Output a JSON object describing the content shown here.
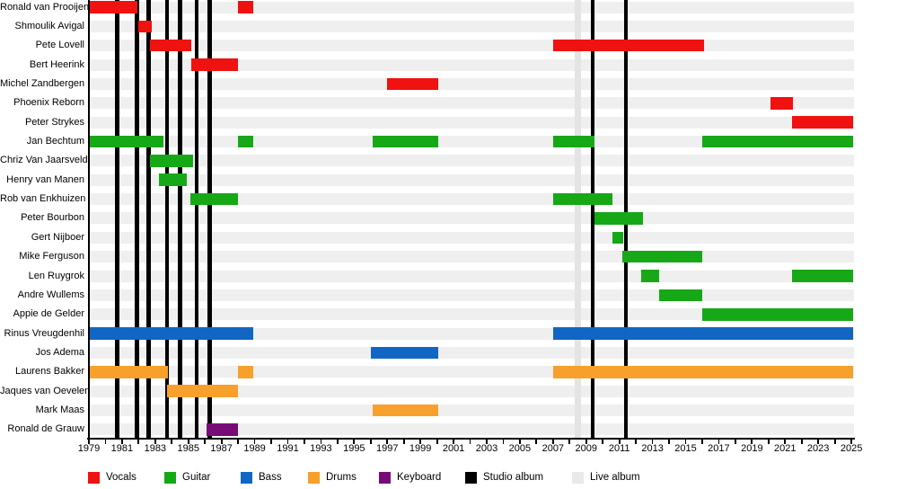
{
  "chart_data": {
    "type": "bar",
    "variant": "band-members-gantt-timeline",
    "title": "",
    "x_axis": {
      "min": 1979,
      "max": 2025.13,
      "tick_step": 1,
      "tick_labels": [
        "1979",
        "1981",
        "1983",
        "1985",
        "1987",
        "1989",
        "1991",
        "1993",
        "1995",
        "1997",
        "1999",
        "2001",
        "2003",
        "2005",
        "2007",
        "2009",
        "2011",
        "2013",
        "2015",
        "2017",
        "2019",
        "2021",
        "2023",
        "2025"
      ],
      "tick_label_years": [
        1979,
        1981,
        1983,
        1985,
        1987,
        1989,
        1991,
        1993,
        1995,
        1997,
        1999,
        2001,
        2003,
        2005,
        2007,
        2009,
        2011,
        2013,
        2015,
        2017,
        2019,
        2021,
        2023,
        2025
      ]
    },
    "rows": [
      {
        "name": "Ronald van Prooijen",
        "role": "Vocals",
        "intervals": [
          [
            1979.0,
            1981.9
          ],
          [
            1988.0,
            1988.9
          ]
        ]
      },
      {
        "name": "Shmoulik Avigal",
        "role": "Vocals",
        "intervals": [
          [
            1982.0,
            1982.8
          ]
        ]
      },
      {
        "name": "Pete Lovell",
        "role": "Vocals",
        "intervals": [
          [
            1982.7,
            1985.2
          ],
          [
            2007.0,
            2016.1
          ]
        ]
      },
      {
        "name": "Bert Heerink",
        "role": "Vocals",
        "intervals": [
          [
            1985.2,
            1988.0
          ]
        ]
      },
      {
        "name": "Michel Zandbergen",
        "role": "Vocals",
        "intervals": [
          [
            1997.0,
            2000.1
          ]
        ]
      },
      {
        "name": "Phoenix Reborn",
        "role": "Vocals",
        "intervals": [
          [
            2020.1,
            2021.5
          ]
        ]
      },
      {
        "name": "Peter Strykes",
        "role": "Vocals",
        "intervals": [
          [
            2021.4,
            2025.13
          ]
        ]
      },
      {
        "name": "Jan Bechtum",
        "role": "Guitar",
        "intervals": [
          [
            1979.0,
            1983.5
          ],
          [
            1988.0,
            1988.9
          ],
          [
            1996.1,
            2000.1
          ],
          [
            2007.0,
            2009.5
          ],
          [
            2016.0,
            2025.13
          ]
        ]
      },
      {
        "name": "Chriz Van Jaarsveld",
        "role": "Guitar",
        "intervals": [
          [
            1982.7,
            1985.3
          ]
        ]
      },
      {
        "name": "Henry van Manen",
        "role": "Guitar",
        "intervals": [
          [
            1983.2,
            1984.9
          ]
        ]
      },
      {
        "name": "Rob van Enkhuizen",
        "role": "Guitar",
        "intervals": [
          [
            1985.1,
            1988.0
          ],
          [
            2007.0,
            2010.6
          ]
        ]
      },
      {
        "name": "Peter Bourbon",
        "role": "Guitar",
        "intervals": [
          [
            2009.5,
            2012.4
          ]
        ]
      },
      {
        "name": "Gert Nijboer",
        "role": "Guitar",
        "intervals": [
          [
            2010.6,
            2011.25
          ]
        ]
      },
      {
        "name": "Mike Ferguson",
        "role": "Guitar",
        "intervals": [
          [
            2011.2,
            2016.0
          ]
        ]
      },
      {
        "name": "Len Ruygrok",
        "role": "Guitar",
        "intervals": [
          [
            2012.3,
            2013.4
          ],
          [
            2021.4,
            2025.13
          ]
        ]
      },
      {
        "name": "Andre Wullems",
        "role": "Guitar",
        "intervals": [
          [
            2013.4,
            2016.0
          ]
        ]
      },
      {
        "name": "Appie de Gelder",
        "role": "Guitar",
        "intervals": [
          [
            2016.0,
            2025.13
          ]
        ]
      },
      {
        "name": "Rinus Vreugdenhil",
        "role": "Bass",
        "intervals": [
          [
            1979.0,
            1988.9
          ],
          [
            2007.0,
            2025.13
          ]
        ]
      },
      {
        "name": "Jos Adema",
        "role": "Bass",
        "intervals": [
          [
            1996.0,
            2000.1
          ]
        ]
      },
      {
        "name": "Laurens Bakker",
        "role": "Drums",
        "intervals": [
          [
            1979.0,
            1983.75
          ],
          [
            1988.0,
            1988.9
          ],
          [
            2007.0,
            2025.13
          ]
        ]
      },
      {
        "name": "Jaques van Oevelen",
        "role": "Drums",
        "intervals": [
          [
            1983.7,
            1988.0
          ]
        ]
      },
      {
        "name": "Mark Maas",
        "role": "Drums",
        "intervals": [
          [
            1996.1,
            2000.1
          ]
        ]
      },
      {
        "name": "Ronald de Grauw",
        "role": "Keyboard",
        "intervals": [
          [
            1986.1,
            1988.0
          ]
        ]
      }
    ],
    "albums": {
      "studio_years": [
        1980.7,
        1981.9,
        1982.6,
        1983.7,
        1984.5,
        1985.5,
        1986.3,
        2009.4,
        2011.4
      ],
      "live_years": [
        2008.5
      ]
    },
    "role_colors": {
      "Vocals": "#f01111",
      "Guitar": "#17a817",
      "Bass": "#1166c4",
      "Drums": "#f8a02c",
      "Keyboard": "#780a78"
    },
    "legend": [
      {
        "label": "Vocals",
        "color": "#f01111"
      },
      {
        "label": "Guitar",
        "color": "#17a817"
      },
      {
        "label": "Bass",
        "color": "#1166c4"
      },
      {
        "label": "Drums",
        "color": "#f8a02c"
      },
      {
        "label": "Keyboard",
        "color": "#780a78"
      },
      {
        "label": "Studio album",
        "color": "#000000"
      },
      {
        "label": "Live album",
        "color": "#e9e9e9"
      }
    ],
    "layout_hints": {
      "grid": "off",
      "legend_position": "bottom",
      "row_stripe_color": "#efefef",
      "studio_album_marker": "full-height black vertical line",
      "live_album_marker": "full-height light-gray vertical line"
    }
  }
}
